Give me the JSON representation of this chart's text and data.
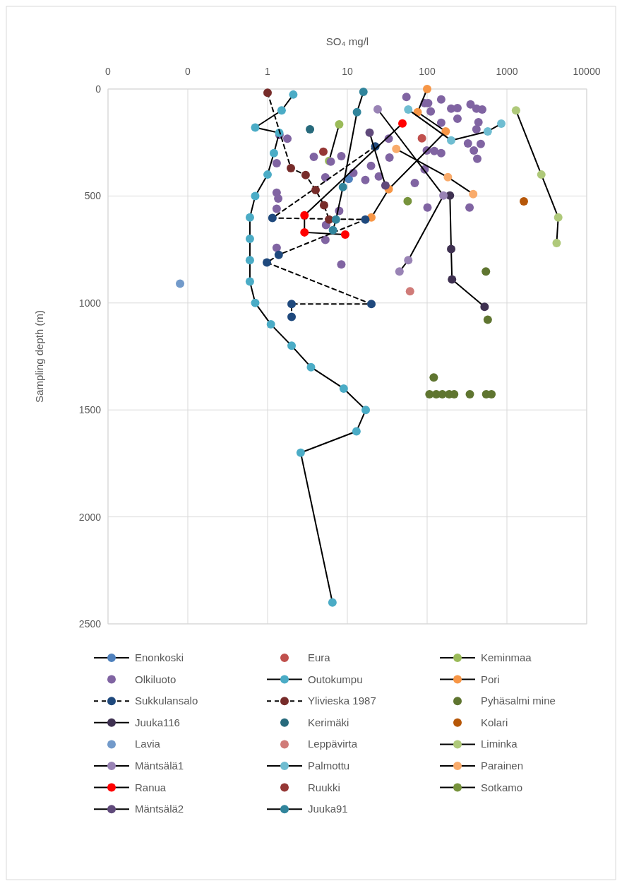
{
  "chart_data": {
    "type": "scatter",
    "xlabel": "SO₄ mg/l",
    "ylabel": "Sampling depth (m)",
    "log": "x",
    "xlim": [
      0.01,
      10000
    ],
    "xticks": [
      {
        "value": 0.01,
        "label": "0"
      },
      {
        "value": 0.1,
        "label": "0"
      },
      1,
      10,
      100,
      1000,
      10000
    ],
    "ylim": [
      2500,
      0
    ],
    "yticks": [
      0,
      500,
      1000,
      1500,
      2000,
      2500
    ],
    "grid": true,
    "legend": "bottom",
    "marker": "circle",
    "series": [
      {
        "name": "Enonkoski",
        "type": "line",
        "color": "#4f81bd",
        "x": [
          10.4
        ],
        "values": [
          420
        ]
      },
      {
        "name": "Eura",
        "color": "#c0504d",
        "x": [
          86
        ],
        "values": [
          230
        ]
      },
      {
        "name": "Keminmaa",
        "type": "line",
        "color": "#9bbb59",
        "x": [
          7.9,
          5.9
        ],
        "values": [
          165,
          336
        ]
      },
      {
        "name": "Olkiluoto",
        "color": "#8064a2",
        "x": [
          1.41,
          1.77,
          1.3,
          3.8,
          8.4,
          6.2,
          1.3,
          1.36,
          1.3,
          5.3,
          11.9,
          16.8,
          19.8,
          24.8,
          33.7,
          33,
          7.9,
          5.4,
          5.3,
          1.3,
          8.4,
          55,
          93,
          103,
          111,
          150,
          150,
          200,
          240,
          240,
          350,
          415,
          490,
          440,
          415,
          325,
          470,
          385,
          425,
          99,
          123,
          150,
          93,
          70,
          101,
          340
        ],
        "values": [
          215,
          232,
          347,
          317,
          314,
          339,
          485,
          512,
          560,
          413,
          392,
          425,
          359,
          409,
          320,
          232,
          570,
          636,
          705,
          742,
          820,
          37,
          66,
          66,
          105,
          49,
          158,
          92,
          89,
          139,
          72,
          92,
          96,
          155,
          188,
          254,
          257,
          287,
          326,
          287,
          290,
          300,
          376,
          439,
          554,
          554
        ]
      },
      {
        "name": "Outokumpu",
        "type": "line",
        "color": "#4bacc6",
        "x": [
          2.1,
          1.5,
          0.7,
          1.4,
          1.2,
          1.0,
          0.7,
          0.6,
          0.6,
          0.6,
          0.6,
          0.7,
          1.1,
          2,
          3.5,
          9,
          17,
          13,
          2.6,
          6.5
        ],
        "values": [
          26,
          100,
          180,
          205,
          300,
          400,
          500,
          600,
          700,
          800,
          900,
          1000,
          1100,
          1200,
          1300,
          1400,
          1500,
          1600,
          1700,
          2400
        ]
      },
      {
        "name": "Pori",
        "type": "line",
        "color": "#f79646",
        "x": [
          100,
          76,
          171,
          33,
          20
        ],
        "values": [
          0,
          108,
          198,
          468,
          600
        ]
      },
      {
        "name": "Sukkulansalo",
        "type": "line",
        "line_style": "dashed",
        "color": "#1f497d",
        "x": [
          22.4,
          1.15,
          16.8,
          1.38,
          0.98,
          20,
          2,
          2
        ],
        "values": [
          268,
          603,
          610,
          775,
          811,
          1005,
          1005,
          1065
        ]
      },
      {
        "name": "Ylivieska 1987",
        "type": "line",
        "line_style": "dashed",
        "color": "#772c2a",
        "x": [
          1,
          1.96,
          3,
          4,
          5.1,
          5.9
        ],
        "values": [
          17,
          370,
          402,
          472,
          543,
          610
        ]
      },
      {
        "name": "Pyhäsalmi mine",
        "color": "#5f7530",
        "x": [
          545,
          575,
          121,
          107,
          130,
          155,
          189,
          218,
          343,
          550,
          640
        ],
        "values": [
          853,
          1078,
          1348,
          1427,
          1427,
          1427,
          1427,
          1427,
          1427,
          1427,
          1427
        ]
      },
      {
        "name": "Juuka116",
        "type": "line",
        "color": "#3f3151",
        "x": [
          193,
          200,
          205,
          525
        ],
        "values": [
          498,
          748,
          890,
          1018
        ]
      },
      {
        "name": "Kerimäki",
        "color": "#276a7c",
        "x": [
          3.4
        ],
        "values": [
          188
        ]
      },
      {
        "name": "Kolari",
        "color": "#b65708",
        "x": [
          1630
        ],
        "values": [
          525
        ]
      },
      {
        "name": "Lavia",
        "color": "#729aca",
        "x": [
          0.08
        ],
        "values": [
          910
        ]
      },
      {
        "name": "Leppävirta",
        "color": "#d07b78",
        "x": [
          61
        ],
        "values": [
          945
        ]
      },
      {
        "name": "Liminka",
        "type": "line",
        "color": "#afc97a",
        "x": [
          1300,
          2700,
          4400,
          4200
        ],
        "values": [
          100,
          400,
          600,
          720
        ]
      },
      {
        "name": "Mäntsälä1",
        "type": "line",
        "color": "#9983b5",
        "x": [
          24,
          160,
          58,
          45
        ],
        "values": [
          95,
          498,
          800,
          853
        ]
      },
      {
        "name": "Palmottu",
        "type": "line",
        "color": "#6fbdd1",
        "x": [
          58,
          200,
          575,
          850
        ],
        "values": [
          96,
          240,
          198,
          162
        ]
      },
      {
        "name": "Parainen",
        "type": "line",
        "color": "#f9ab6b",
        "x": [
          41,
          182,
          378
        ],
        "values": [
          280,
          412,
          491
        ]
      },
      {
        "name": "Ranua",
        "type": "line",
        "color": "#ff0000",
        "x": [
          49,
          2.9,
          2.9,
          9.4
        ],
        "values": [
          161,
          590,
          670,
          680
        ]
      },
      {
        "name": "Ruukki",
        "color": "#953735",
        "x": [
          5
        ],
        "values": [
          293
        ]
      },
      {
        "name": "Sotkamo",
        "type": "line",
        "color": "#77933c",
        "x": [
          57
        ],
        "values": [
          524
        ]
      },
      {
        "name": "Mäntsälä2",
        "type": "line",
        "color": "#604a7b",
        "x": [
          19,
          30
        ],
        "values": [
          204,
          451
        ]
      },
      {
        "name": "Juuka91",
        "type": "line",
        "color": "#31859c",
        "x": [
          15.9,
          13.2,
          8.8,
          7.2,
          6.6
        ],
        "values": [
          13,
          108,
          458,
          610,
          660
        ]
      }
    ]
  }
}
